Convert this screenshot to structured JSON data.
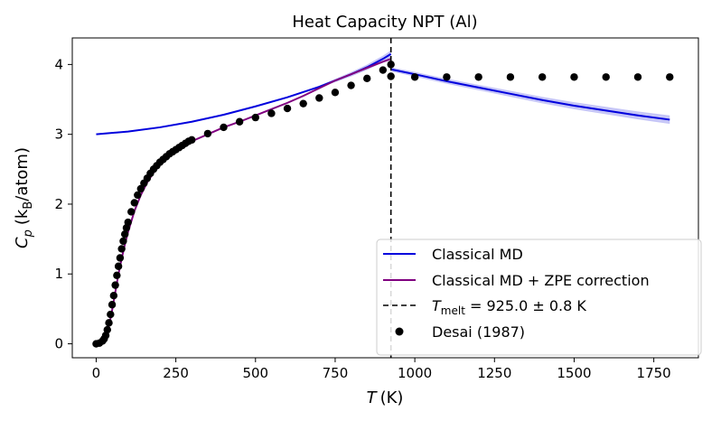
{
  "chart_data": {
    "type": "line",
    "title": "Heat Capacity NPT (Al)",
    "xlabel": "T",
    "xlabel_unit": "(K)",
    "ylabel": "C",
    "ylabel_sub": "p",
    "ylabel_unit_open": "(k",
    "ylabel_unit_sub": "B",
    "ylabel_unit_close": "/atom)",
    "xlim": [
      -75,
      1890
    ],
    "ylim": [
      -0.2,
      4.38
    ],
    "xticks": [
      0,
      250,
      500,
      750,
      1000,
      1250,
      1500,
      1750
    ],
    "yticks": [
      0,
      1,
      2,
      3,
      4
    ],
    "melting_point": 925.0,
    "colors": {
      "classical": "#0000dd",
      "zpe": "#800080",
      "band": "#8080ee",
      "melt": "#000000",
      "desai": "#000000"
    },
    "legend": {
      "position": "lower right",
      "entries": [
        {
          "label": "Classical MD"
        },
        {
          "label": "Classical MD + ZPE correction"
        },
        {
          "label_main": "T",
          "label_sub": "melt",
          "label_rest": " = 925.0 ± 0.8 K"
        },
        {
          "label": "Desai (1987)"
        }
      ]
    },
    "series": [
      {
        "name": "Classical MD (solid)",
        "x": [
          0,
          100,
          200,
          300,
          400,
          500,
          600,
          700,
          800,
          850,
          900,
          925
        ],
        "y": [
          3.0,
          3.04,
          3.1,
          3.18,
          3.28,
          3.4,
          3.53,
          3.68,
          3.86,
          3.96,
          4.08,
          4.15
        ]
      },
      {
        "name": "Classical MD (liquid)",
        "x": [
          925,
          1000,
          1100,
          1200,
          1300,
          1400,
          1500,
          1600,
          1700,
          1800
        ],
        "y": [
          3.93,
          3.86,
          3.76,
          3.67,
          3.58,
          3.49,
          3.41,
          3.34,
          3.27,
          3.21
        ]
      },
      {
        "name": "Classical MD + ZPE correction",
        "x": [
          0,
          10,
          20,
          30,
          40,
          50,
          60,
          70,
          80,
          90,
          100,
          120,
          140,
          160,
          180,
          200,
          225,
          250,
          275,
          300,
          350,
          400,
          450,
          500,
          550,
          600,
          650,
          700,
          750,
          800,
          850,
          900,
          925
        ],
        "y": [
          0.0,
          0.0,
          0.02,
          0.08,
          0.25,
          0.48,
          0.74,
          1.0,
          1.22,
          1.42,
          1.6,
          1.9,
          2.13,
          2.31,
          2.45,
          2.56,
          2.67,
          2.76,
          2.83,
          2.9,
          3.0,
          3.1,
          3.18,
          3.27,
          3.36,
          3.45,
          3.55,
          3.66,
          3.77,
          3.86,
          3.95,
          4.04,
          4.08
        ]
      },
      {
        "name": "Desai (1987)",
        "x": [
          0,
          10,
          20,
          25,
          30,
          35,
          40,
          45,
          50,
          55,
          60,
          65,
          70,
          75,
          80,
          85,
          90,
          95,
          100,
          110,
          120,
          130,
          140,
          150,
          160,
          170,
          180,
          190,
          200,
          210,
          220,
          230,
          240,
          250,
          260,
          270,
          280,
          290,
          300,
          350,
          400,
          450,
          500,
          550,
          600,
          650,
          700,
          750,
          800,
          850,
          900,
          925,
          925,
          1000,
          1100,
          1200,
          1300,
          1400,
          1500,
          1600,
          1700,
          1800
        ],
        "y": [
          0.0,
          0.01,
          0.04,
          0.07,
          0.12,
          0.2,
          0.3,
          0.42,
          0.56,
          0.69,
          0.84,
          0.98,
          1.11,
          1.23,
          1.36,
          1.47,
          1.57,
          1.66,
          1.74,
          1.89,
          2.02,
          2.13,
          2.22,
          2.3,
          2.37,
          2.44,
          2.5,
          2.55,
          2.6,
          2.64,
          2.68,
          2.72,
          2.75,
          2.78,
          2.81,
          2.84,
          2.87,
          2.9,
          2.92,
          3.01,
          3.1,
          3.18,
          3.24,
          3.3,
          3.37,
          3.44,
          3.52,
          3.6,
          3.7,
          3.8,
          3.92,
          4.0,
          3.83,
          3.82,
          3.82,
          3.82,
          3.82,
          3.82,
          3.82,
          3.82,
          3.82,
          3.82
        ]
      }
    ]
  }
}
